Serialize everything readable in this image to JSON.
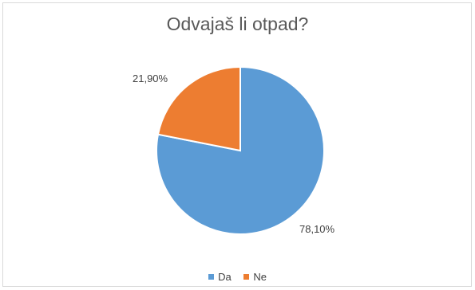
{
  "chart_data": {
    "type": "pie",
    "title": "Odvajaš li otpad?",
    "categories": [
      "Da",
      "Ne"
    ],
    "values": [
      78.1,
      21.9
    ],
    "data_labels": [
      "78,10%",
      "21,90%"
    ],
    "colors": [
      "#5b9bd5",
      "#ed7d31"
    ],
    "legend_position": "bottom"
  }
}
